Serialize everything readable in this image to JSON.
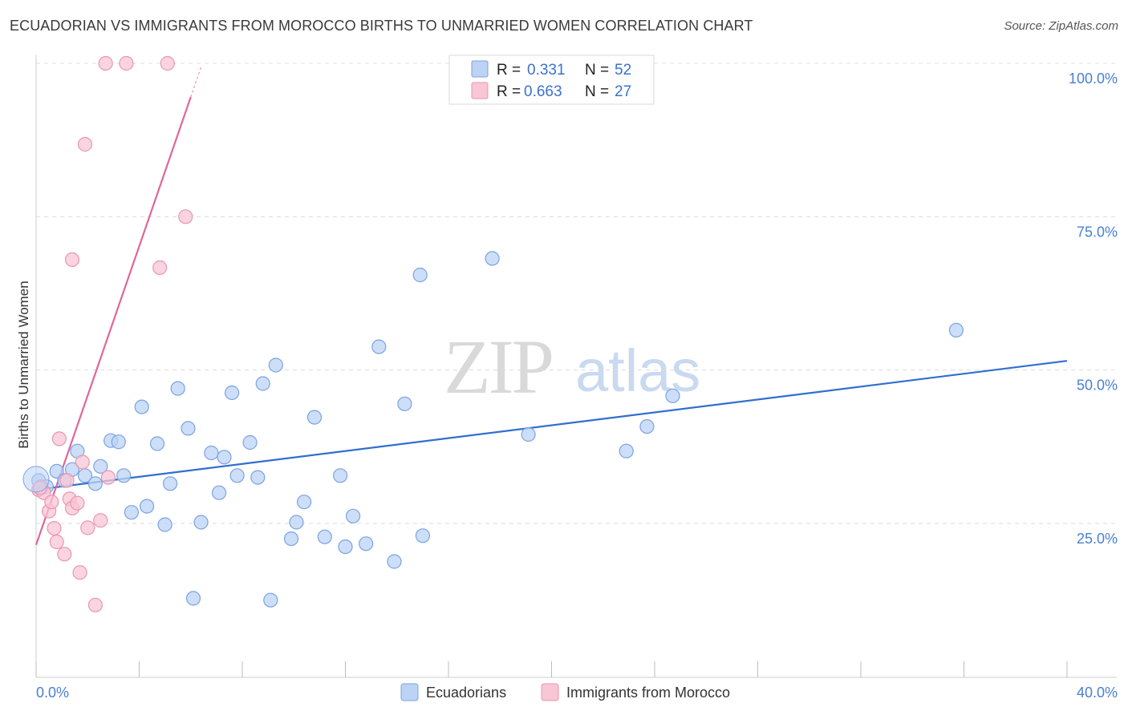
{
  "header": {
    "title": "ECUADORIAN VS IMMIGRANTS FROM MOROCCO BIRTHS TO UNMARRIED WOMEN CORRELATION CHART",
    "source": "Source: ZipAtlas.com"
  },
  "watermark": {
    "zip": "ZIP",
    "atlas": "atlas"
  },
  "legend": {
    "r_label": "R =",
    "n_label": "N =",
    "entries": [
      {
        "r": "0.331",
        "n": "52"
      },
      {
        "r": "0.663",
        "n": "27"
      }
    ]
  },
  "colors": {
    "blue_fill": "#bcd3f5",
    "blue_stroke": "#7aa3e0",
    "blue_line": "#2f6fd0",
    "pink_fill": "#f8c6d5",
    "pink_stroke": "#e996b1",
    "pink_line": "#e0669a"
  },
  "chart_data": {
    "type": "scatter",
    "title": "ECUADORIAN VS IMMIGRANTS FROM MOROCCO BIRTHS TO UNMARRIED WOMEN CORRELATION CHART",
    "xlabel": "",
    "ylabel": "Births to Unmarried Women",
    "xlim": [
      0,
      40
    ],
    "ylim": [
      0,
      100
    ],
    "x_tick_labels": [
      "0.0%",
      "40.0%"
    ],
    "y_tick_labels": [
      {
        "value": 100,
        "label": "100.0%"
      },
      {
        "value": 75,
        "label": "75.0%"
      },
      {
        "value": 50,
        "label": "50.0%"
      },
      {
        "value": 25,
        "label": "25.0%"
      }
    ],
    "series": [
      {
        "name": "Ecuadorians",
        "r": 0.331,
        "n": 52,
        "trend": {
          "x": [
            0,
            40
          ],
          "y": [
            30.5,
            51.5
          ]
        },
        "points": [
          [
            0.1,
            32.0
          ],
          [
            0.4,
            31.0
          ],
          [
            0.8,
            33.5
          ],
          [
            1.1,
            32.0
          ],
          [
            1.4,
            33.8
          ],
          [
            1.6,
            36.8
          ],
          [
            1.9,
            32.8
          ],
          [
            2.3,
            31.5
          ],
          [
            2.5,
            34.3
          ],
          [
            2.9,
            38.5
          ],
          [
            3.2,
            38.3
          ],
          [
            3.4,
            32.8
          ],
          [
            3.7,
            26.8
          ],
          [
            4.1,
            44.0
          ],
          [
            4.3,
            27.8
          ],
          [
            4.7,
            38.0
          ],
          [
            5.0,
            24.8
          ],
          [
            5.2,
            31.5
          ],
          [
            5.5,
            47.0
          ],
          [
            5.9,
            40.5
          ],
          [
            6.1,
            12.8
          ],
          [
            6.4,
            25.2
          ],
          [
            6.8,
            36.5
          ],
          [
            7.1,
            30.0
          ],
          [
            7.3,
            35.8
          ],
          [
            7.6,
            46.3
          ],
          [
            7.8,
            32.8
          ],
          [
            8.3,
            38.2
          ],
          [
            8.6,
            32.5
          ],
          [
            8.8,
            47.8
          ],
          [
            9.1,
            12.5
          ],
          [
            9.3,
            50.8
          ],
          [
            9.9,
            22.5
          ],
          [
            10.1,
            25.2
          ],
          [
            10.4,
            28.5
          ],
          [
            10.8,
            42.3
          ],
          [
            11.2,
            22.8
          ],
          [
            11.8,
            32.8
          ],
          [
            12.0,
            21.2
          ],
          [
            12.3,
            26.2
          ],
          [
            12.8,
            21.7
          ],
          [
            13.3,
            53.8
          ],
          [
            13.9,
            18.8
          ],
          [
            14.3,
            44.5
          ],
          [
            14.9,
            65.5
          ],
          [
            15.0,
            23.0
          ],
          [
            17.7,
            68.2
          ],
          [
            19.1,
            39.5
          ],
          [
            22.9,
            36.8
          ],
          [
            23.7,
            40.8
          ],
          [
            24.7,
            45.8
          ],
          [
            35.7,
            56.5
          ]
        ]
      },
      {
        "name": "Immigrants from Morocco",
        "r": 0.663,
        "n": 27,
        "trend": {
          "x": [
            0,
            6.0
          ],
          "y": [
            21.5,
            94.5
          ]
        },
        "points": [
          [
            0.1,
            30.5
          ],
          [
            0.2,
            31.0
          ],
          [
            0.3,
            30.0
          ],
          [
            0.5,
            27.0
          ],
          [
            0.6,
            28.5
          ],
          [
            0.7,
            24.2
          ],
          [
            0.8,
            22.0
          ],
          [
            0.9,
            38.8
          ],
          [
            1.1,
            20.0
          ],
          [
            1.2,
            32.0
          ],
          [
            1.3,
            29.0
          ],
          [
            1.4,
            27.5
          ],
          [
            1.4,
            68.0
          ],
          [
            1.6,
            28.3
          ],
          [
            1.7,
            17.0
          ],
          [
            1.8,
            35.0
          ],
          [
            1.9,
            86.8
          ],
          [
            2.0,
            24.3
          ],
          [
            2.3,
            11.7
          ],
          [
            2.5,
            25.5
          ],
          [
            2.8,
            32.5
          ],
          [
            2.7,
            100.0
          ],
          [
            3.5,
            100.0
          ],
          [
            4.8,
            66.7
          ],
          [
            5.1,
            100.0
          ],
          [
            5.8,
            75.0
          ],
          [
            0.15,
            30.8
          ]
        ]
      }
    ],
    "legend": [
      {
        "label": "Ecuadorians"
      },
      {
        "label": "Immigrants from Morocco"
      }
    ]
  }
}
